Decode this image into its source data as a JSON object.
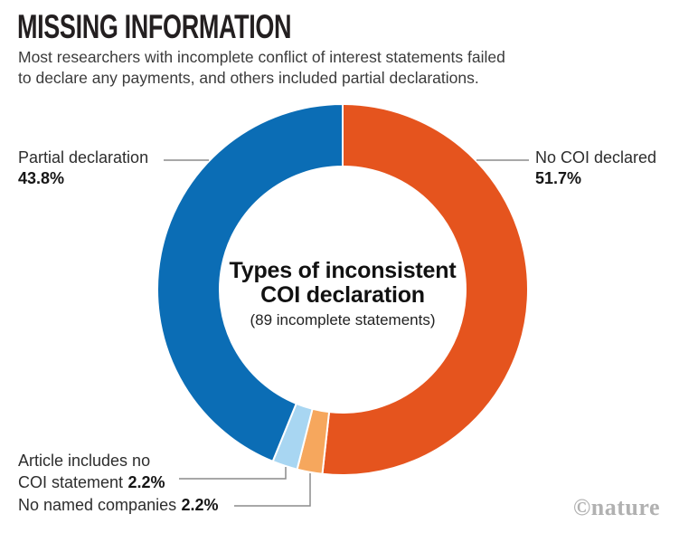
{
  "header": {
    "title": "MISSING INFORMATION",
    "subtitle": "Most researchers with incomplete conflict of interest statements failed\nto declare any payments, and others included partial declarations."
  },
  "chart_data": {
    "type": "pie",
    "variant": "donut",
    "title": "Types of inconsistent COI declaration",
    "subtitle": "(89 incomplete statements)",
    "unit": "%",
    "direction": "clockwise",
    "start_angle_deg": 0,
    "segments": [
      {
        "label": "No COI declared",
        "value": 51.7,
        "color": "#e5541e"
      },
      {
        "label": "No named companies",
        "value": 2.2,
        "color": "#f6a75d"
      },
      {
        "label": "Article includes no COI statement",
        "value": 2.2,
        "color": "#a8d6f2"
      },
      {
        "label": "Partial declaration",
        "value": 43.8,
        "color": "#0b6db5"
      }
    ]
  },
  "center": {
    "title_line1": "Types of inconsistent",
    "title_line2": "COI declaration",
    "note": "(89 incomplete statements)"
  },
  "callouts": {
    "partial": {
      "name": "Partial declaration",
      "pct": "43.8%"
    },
    "no_coi": {
      "name": "No COI declared",
      "pct": "51.7%"
    },
    "article": {
      "line1": "Article includes no",
      "line2": "COI statement",
      "pct": "2.2%"
    },
    "companies": {
      "name": "No named companies",
      "pct": "2.2%"
    }
  },
  "footer": {
    "credit": "©nature"
  },
  "style": {
    "leader_line_color": "#8c8c8c",
    "gap_color": "#ffffff"
  }
}
